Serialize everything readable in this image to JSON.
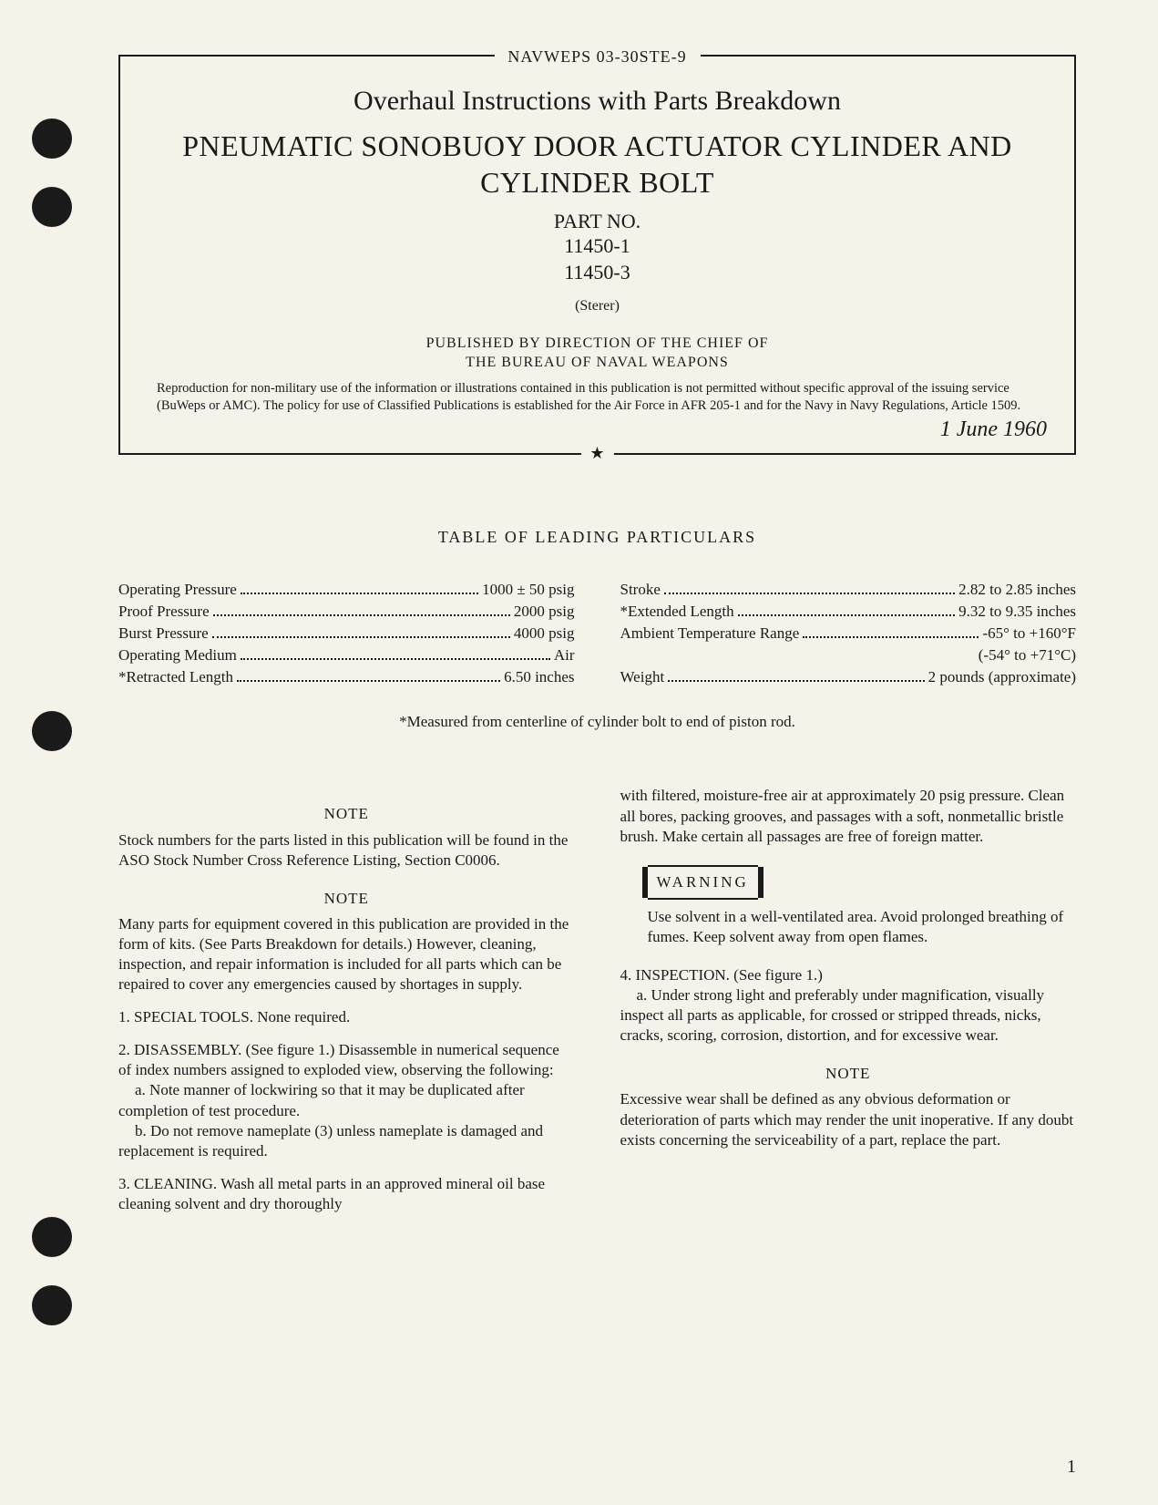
{
  "document": {
    "id": "NAVWEPS 03-30STE-9",
    "subtitle": "Overhaul Instructions with Parts Breakdown",
    "title": "PNEUMATIC SONOBUOY DOOR ACTUATOR CYLINDER AND CYLINDER BOLT",
    "part_no_label": "PART NO.",
    "part_no_1": "11450-1",
    "part_no_2": "11450-3",
    "sterer": "(Sterer)",
    "published_line_1": "PUBLISHED BY DIRECTION OF THE CHIEF OF",
    "published_line_2": "THE BUREAU OF NAVAL WEAPONS",
    "reproduction": "Reproduction for non-military use of the information or illustrations contained in this publication is not permitted without specific approval of the issuing service (BuWeps or AMC). The policy for use of Classified Publications is established for the Air Force in AFR 205-1 and for the Navy in Navy Regulations, Article 1509.",
    "date": "1 June 1960",
    "star": "★"
  },
  "table": {
    "title": "TABLE OF LEADING PARTICULARS",
    "left": [
      {
        "label": "Operating Pressure",
        "value": "1000 ± 50 psig"
      },
      {
        "label": "Proof Pressure",
        "value": "2000 psig"
      },
      {
        "label": "Burst Pressure",
        "value": "4000 psig"
      },
      {
        "label": "Operating Medium",
        "value": "Air"
      },
      {
        "label": "*Retracted Length",
        "value": "6.50 inches"
      }
    ],
    "right": [
      {
        "label": "Stroke",
        "value": "2.82 to 2.85 inches"
      },
      {
        "label": "*Extended Length",
        "value": "9.32 to 9.35 inches"
      },
      {
        "label": "Ambient Temperature Range",
        "value": "-65° to +160°F"
      },
      {
        "label": "",
        "value": "(-54° to +71°C)"
      },
      {
        "label": "Weight",
        "value": "2 pounds (approximate)"
      }
    ],
    "footnote": "*Measured from centerline of cylinder bolt to end of piston rod."
  },
  "body": {
    "note_label": "NOTE",
    "note1": "Stock numbers for the parts listed in this publication will be found in the ASO Stock Number Cross Reference Listing, Section C0006.",
    "note2": "Many parts for equipment covered in this publication are provided in the form of kits. (See Parts Breakdown for details.) However, cleaning, inspection, and repair information is included for all parts which can be repaired to cover any emergencies caused by shortages in supply.",
    "sec1": "1. SPECIAL TOOLS. None required.",
    "sec2": "2. DISASSEMBLY. (See figure 1.) Disassemble in numerical sequence of index numbers assigned to exploded view, observing the following:",
    "sec2a": "a. Note manner of lockwiring so that it may be duplicated after completion of test procedure.",
    "sec2b": "b. Do not remove nameplate (3) unless nameplate is damaged and replacement is required.",
    "sec3_start": "3. CLEANING. Wash all metal parts in an approved mineral oil base cleaning solvent and dry thoroughly",
    "sec3_cont": "with filtered, moisture-free air at approximately 20 psig pressure. Clean all bores, packing grooves, and passages with a soft, nonmetallic bristle brush. Make certain all passages are free of foreign matter.",
    "warning_label": "WARNING",
    "warning": "Use solvent in a well-ventilated area. Avoid prolonged breathing of fumes. Keep solvent away from open flames.",
    "sec4": "4. INSPECTION. (See figure 1.)",
    "sec4a": "a. Under strong light and preferably under magnification, visually inspect all parts as applicable, for crossed or stripped threads, nicks, cracks, scoring, corrosion, distortion, and for excessive wear.",
    "note3": "Excessive wear shall be defined as any obvious deformation or deterioration of parts which may render the unit inoperative. If any doubt exists concerning the serviceability of a part, replace the part."
  },
  "page_number": "1"
}
